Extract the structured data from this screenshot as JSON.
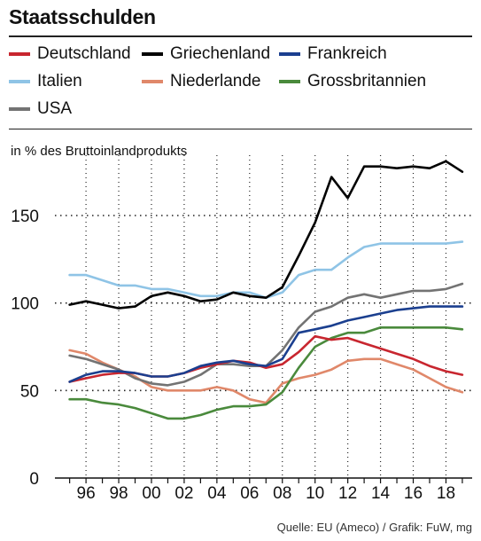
{
  "title": "Staatsschulden",
  "unit_label": "in % des Bruttoinlandprodukts",
  "source": "Quelle: EU (Ameco) / Grafik: FuW, mg",
  "chart_data": {
    "type": "line",
    "x": [
      1995,
      1996,
      1997,
      1998,
      1999,
      2000,
      2001,
      2002,
      2003,
      2004,
      2005,
      2006,
      2007,
      2008,
      2009,
      2010,
      2011,
      2012,
      2013,
      2014,
      2015,
      2016,
      2017,
      2018,
      2019
    ],
    "xtick_values": [
      1996,
      1998,
      2000,
      2002,
      2004,
      2006,
      2008,
      2010,
      2012,
      2014,
      2016,
      2018
    ],
    "xtick_labels": [
      "96",
      "98",
      "00",
      "02",
      "04",
      "06",
      "08",
      "10",
      "12",
      "14",
      "16",
      "18"
    ],
    "yticks": [
      0,
      50,
      100,
      150
    ],
    "ylim": [
      0,
      185
    ],
    "grid": "horizontal dotted",
    "series": [
      {
        "name": "Deutschland",
        "color": "#c8262f",
        "values": [
          55,
          57,
          59,
          60,
          60,
          58,
          58,
          60,
          63,
          65,
          67,
          66,
          63,
          65,
          72,
          81,
          79,
          80,
          77,
          74,
          71,
          68,
          64,
          61,
          59
        ]
      },
      {
        "name": "Griechenland",
        "color": "#000000",
        "values": [
          99,
          101,
          99,
          97,
          98,
          104,
          106,
          104,
          101,
          102,
          106,
          104,
          103,
          109,
          127,
          146,
          172,
          160,
          178,
          178,
          177,
          178,
          177,
          181,
          175
        ]
      },
      {
        "name": "Frankreich",
        "color": "#1b3f8f",
        "values": [
          55,
          59,
          61,
          61,
          60,
          58,
          58,
          60,
          64,
          66,
          67,
          65,
          64,
          68,
          83,
          85,
          87,
          90,
          92,
          94,
          96,
          97,
          98,
          98,
          98
        ]
      },
      {
        "name": "Italien",
        "color": "#8fc4e6",
        "values": [
          116,
          116,
          113,
          110,
          110,
          108,
          108,
          106,
          104,
          104,
          106,
          106,
          103,
          106,
          116,
          119,
          119,
          126,
          132,
          134,
          134,
          134,
          134,
          134,
          135
        ]
      },
      {
        "name": "Niederlande",
        "color": "#e0886a",
        "values": [
          73,
          71,
          66,
          62,
          58,
          52,
          50,
          50,
          50,
          52,
          50,
          45,
          43,
          54,
          57,
          59,
          62,
          67,
          68,
          68,
          65,
          62,
          57,
          52,
          49
        ]
      },
      {
        "name": "Grossbritannien",
        "color": "#4a8a3c",
        "values": [
          45,
          45,
          43,
          42,
          40,
          37,
          34,
          34,
          36,
          39,
          41,
          41,
          42,
          49,
          63,
          75,
          80,
          83,
          83,
          86,
          86,
          86,
          86,
          86,
          85
        ]
      },
      {
        "name": "USA",
        "color": "#737373",
        "values": [
          70,
          68,
          65,
          62,
          57,
          54,
          53,
          55,
          59,
          65,
          65,
          64,
          64,
          73,
          86,
          95,
          98,
          103,
          105,
          103,
          105,
          107,
          107,
          108,
          111
        ]
      }
    ]
  }
}
